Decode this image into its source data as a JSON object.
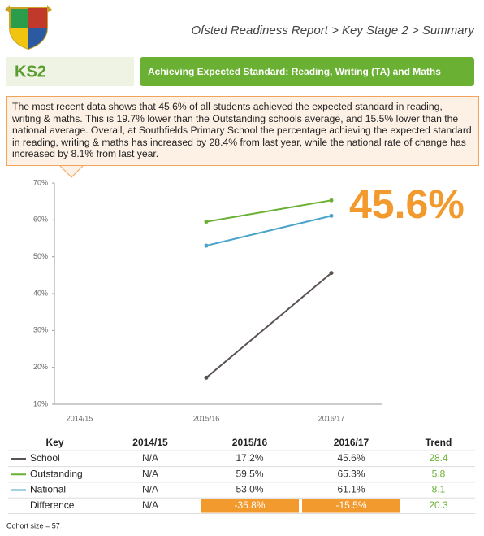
{
  "header": {
    "breadcrumb": "Ofsted Readiness Report > Key Stage 2 > Summary",
    "stage": "KS2",
    "section_title": "Achieving Expected Standard: Reading, Writing (TA) and Maths"
  },
  "callout": "The most recent data shows that 45.6% of all students achieved the expected standard in reading, writing & maths. This is 19.7% lower than the Outstanding schools average, and 15.5% lower than the national average. Overall, at Southfields Primary School the percentage achieving the expected standard in reading, writing & maths has increased by 28.4% from last year, while the national rate of change has increased by 8.1% from last year.",
  "chart_data": {
    "type": "line",
    "categories": [
      "2014/15",
      "2015/16",
      "2016/17"
    ],
    "series": [
      {
        "color": "#5b5352",
        "values": [
          null,
          17.2,
          45.6
        ]
      },
      {
        "color": "#6ab033",
        "values": [
          null,
          59.5,
          65.3
        ]
      },
      {
        "color": "#4aa3c8",
        "values": [
          null,
          53.0,
          61.1
        ]
      }
    ],
    "ylim": [
      10,
      70
    ],
    "yticks": [
      {
        "value": 10,
        "label": "10%"
      },
      {
        "value": 20,
        "label": "20%"
      },
      {
        "value": 30,
        "label": "30%"
      },
      {
        "value": 40,
        "label": "40%"
      },
      {
        "value": 50,
        "label": "50%"
      },
      {
        "value": 60,
        "label": "60%"
      },
      {
        "value": 70,
        "label": "70%"
      }
    ],
    "grid": false
  },
  "highlight": "45.6%",
  "table": {
    "header": [
      "Key",
      "2014/15",
      "2015/16",
      "2016/17",
      "Trend"
    ],
    "rows": [
      [
        "School",
        "N/A",
        "17.2%",
        "45.6%",
        "28.4"
      ],
      [
        "Outstanding",
        "N/A",
        "59.5%",
        "65.3%",
        "5.8"
      ],
      [
        "National",
        "N/A",
        "53.0%",
        "61.1%",
        "8.1"
      ],
      [
        "Difference",
        "N/A",
        "-35.8%",
        "-15.5%",
        "20.3"
      ]
    ]
  },
  "footer": "Cohort size = 57"
}
